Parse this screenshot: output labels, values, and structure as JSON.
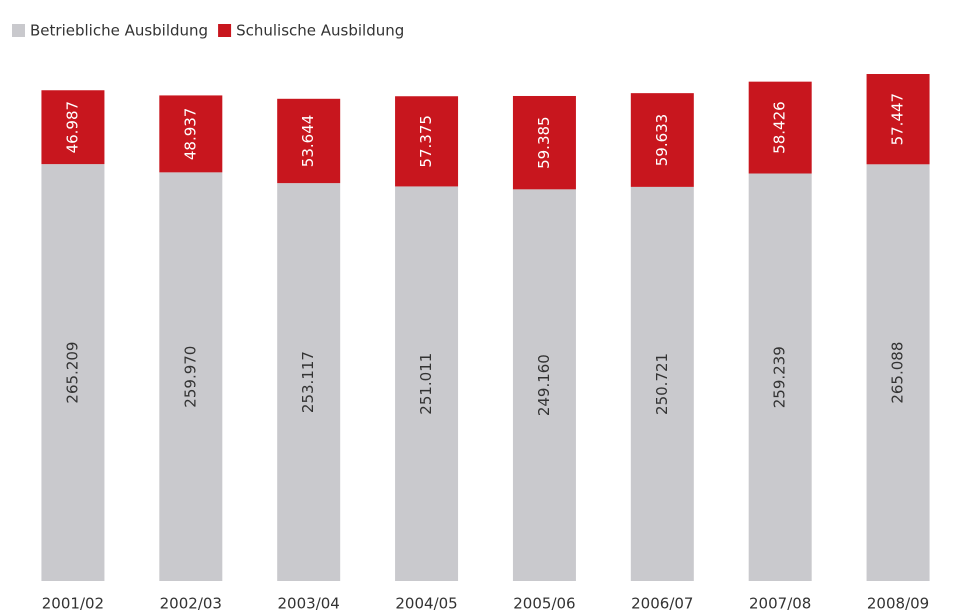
{
  "chart_data": {
    "type": "stacked_bar",
    "categories": [
      "2001/02",
      "2002/03",
      "2003/04",
      "2004/05",
      "2005/06",
      "2006/07",
      "2007/08",
      "2008/09"
    ],
    "series": [
      {
        "name": "Betriebliche Ausbildung",
        "color": "#c9c9cd",
        "values": [
          265209,
          259970,
          253117,
          251011,
          249160,
          250721,
          259239,
          265088
        ],
        "value_labels": [
          "265.209",
          "259.970",
          "253.117",
          "251.011",
          "249.160",
          "250.721",
          "259.239",
          "265.088"
        ]
      },
      {
        "name": "Schulische Ausbildung",
        "color": "#c8161e",
        "values": [
          46987,
          48937,
          53644,
          57375,
          59385,
          59633,
          58426,
          57447
        ],
        "value_labels": [
          "46.987",
          "48.937",
          "53.644",
          "57.375",
          "59.385",
          "59.633",
          "58.426",
          "57.447"
        ]
      }
    ],
    "legend": "top-left"
  }
}
